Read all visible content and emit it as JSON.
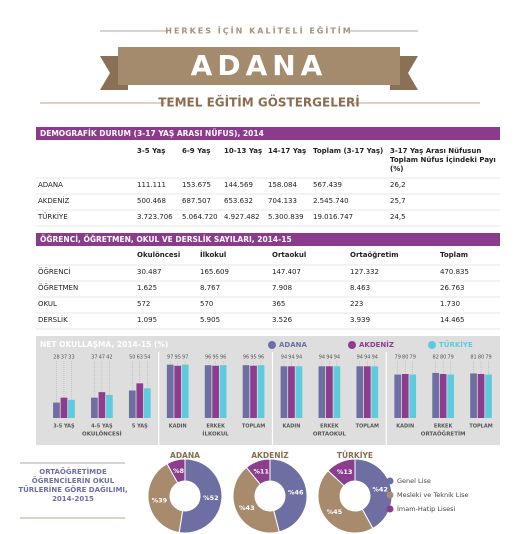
{
  "header": {
    "tagline": "HERKES İÇİN KALİTELİ EĞİTİM",
    "title": "ADANA",
    "subtitle": "TEMEL EĞİTİM GÖSTERGELERİ"
  },
  "demographics": {
    "title": "DEMOGRAFİK DURUM (3-17 YAŞ ARASI NÜFUS), 2014",
    "columns": [
      "3-5 Yaş",
      "6-9 Yaş",
      "10-13 Yaş",
      "14-17 Yaş",
      "Toplam (3-17 Yaş)",
      "3-17 Yaş Arası Nüfusun Toplam Nüfus İçindeki Payı (%)"
    ],
    "rows": [
      {
        "label": "ADANA",
        "cells": [
          "111.111",
          "153.675",
          "144.569",
          "158.084",
          "567.439",
          "26,2"
        ]
      },
      {
        "label": "AKDENİZ",
        "cells": [
          "500.468",
          "687.507",
          "653.632",
          "704.133",
          "2.545.740",
          "25,7"
        ]
      },
      {
        "label": "TÜRKİYE",
        "cells": [
          "3.723.706",
          "5.064.720",
          "4.927.482",
          "5.300.839",
          "19.016.747",
          "24,5"
        ]
      }
    ]
  },
  "counts": {
    "title": "ÖĞRENCİ, ÖĞRETMEN, OKUL VE DERSLİK SAYILARI, 2014-15",
    "columns": [
      "Okulöncesi",
      "İlkokul",
      "Ortaokul",
      "Ortaöğretim",
      "Toplam"
    ],
    "rows": [
      {
        "label": "ÖĞRENCİ",
        "cells": [
          "30.487",
          "165.609",
          "147.407",
          "127.332",
          "470.835"
        ]
      },
      {
        "label": "ÖĞRETMEN",
        "cells": [
          "1.625",
          "8.767",
          "7.908",
          "8.463",
          "26.763"
        ]
      },
      {
        "label": "OKUL",
        "cells": [
          "572",
          "570",
          "365",
          "223",
          "1.730"
        ]
      },
      {
        "label": "DERSLİK",
        "cells": [
          "1.095",
          "5.905",
          "3.526",
          "3.939",
          "14.465"
        ]
      }
    ]
  },
  "chart_data": [
    {
      "type": "bar",
      "title": "NET OKULLAŞMA, 2014-15 (%)",
      "groups": [
        {
          "name": "OKULÖNCESİ",
          "categories": [
            "3-5 YAŞ",
            "4-5 YAŞ",
            "5 YAŞ"
          ]
        },
        {
          "name": "İLKOKUL",
          "categories": [
            "KADIN",
            "ERKEK",
            "TOPLAM"
          ]
        },
        {
          "name": "ORTAOKUL",
          "categories": [
            "KADIN",
            "ERKEK",
            "TOPLAM"
          ]
        },
        {
          "name": "ORTAÖĞRETİM",
          "categories": [
            "KADIN",
            "ERKEK",
            "TOPLAM"
          ]
        }
      ],
      "series": [
        {
          "name": "ADANA",
          "color": "#6d6fa3",
          "values": [
            28,
            37,
            50,
            97,
            96,
            96,
            94,
            94,
            94,
            79,
            82,
            81
          ]
        },
        {
          "name": "AKDENİZ",
          "color": "#8d3d8d",
          "values": [
            37,
            47,
            63,
            95,
            95,
            95,
            94,
            94,
            94,
            80,
            80,
            80
          ]
        },
        {
          "name": "TÜRKİYE",
          "color": "#5ecbdc",
          "values": [
            33,
            42,
            54,
            97,
            96,
            96,
            94,
            94,
            94,
            79,
            79,
            79
          ]
        }
      ],
      "ylim": [
        0,
        100
      ]
    },
    {
      "type": "donut",
      "title": "ORTAÖĞRETİMDE ÖĞRENCİLERİN OKUL TÜRLERİNE GÖRE DAĞILIMI, 2014-2015",
      "categories": [
        "Genel Lise",
        "Mesleki ve Teknik Lise",
        "İmam-Hatip Lisesi"
      ],
      "colors": [
        "#6d6fa3",
        "#a78b6c",
        "#8d3d8d"
      ],
      "series": [
        {
          "name": "ADANA",
          "values": [
            52,
            39,
            8
          ],
          "value_labels": [
            "%52",
            "%39",
            "%8"
          ]
        },
        {
          "name": "AKDENİZ",
          "values": [
            46,
            43,
            11
          ],
          "value_labels": [
            "%46",
            "%43",
            "%11"
          ]
        },
        {
          "name": "TÜRKİYE",
          "values": [
            42,
            45,
            13
          ],
          "value_labels": [
            "%42",
            "%45",
            "%13"
          ]
        }
      ]
    }
  ]
}
